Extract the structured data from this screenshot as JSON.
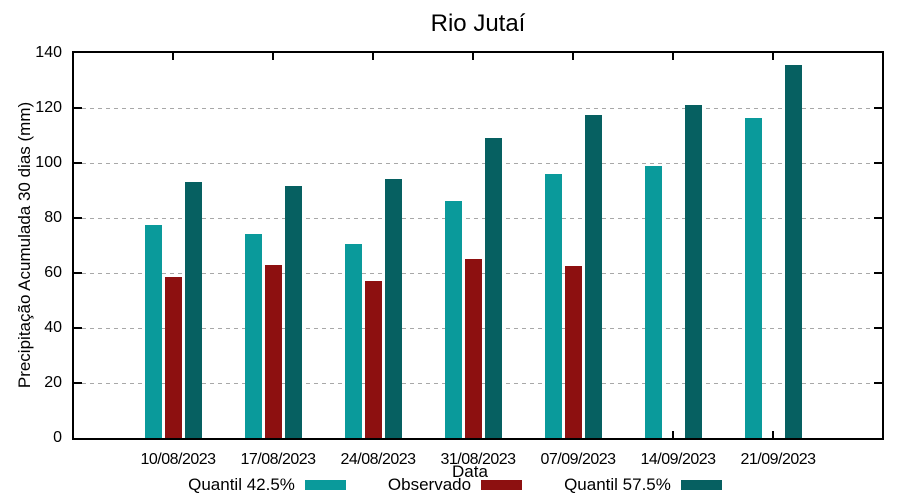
{
  "chart_data": {
    "type": "bar",
    "title": "Rio Jutaí",
    "xlabel": "Data",
    "ylabel": "Precipitação Acumulada 30 dias (mm)",
    "categories": [
      "10/08/2023",
      "17/08/2023",
      "24/08/2023",
      "31/08/2023",
      "07/09/2023",
      "14/09/2023",
      "21/09/2023"
    ],
    "series": [
      {
        "name": "Quantil 42.5%",
        "color": "#0A9A9B",
        "values": [
          77.5,
          74,
          70.5,
          86,
          96,
          99,
          116.5
        ]
      },
      {
        "name": "Observado",
        "color": "#8D1010",
        "values": [
          58.5,
          63,
          57,
          65,
          62.5,
          null,
          null
        ]
      },
      {
        "name": "Quantil 57.5%",
        "color": "#066061",
        "values": [
          93,
          91.5,
          94,
          109,
          117.5,
          121,
          135.5
        ]
      }
    ],
    "ylim": [
      0,
      140
    ],
    "yticks": [
      0,
      20,
      40,
      60,
      80,
      100,
      120,
      140
    ],
    "grid": "dashed horizontal",
    "legend_position": "bottom center",
    "colors": {
      "axis": "#000000",
      "gridline": "#a8a8a8",
      "background": "#ffffff"
    }
  }
}
